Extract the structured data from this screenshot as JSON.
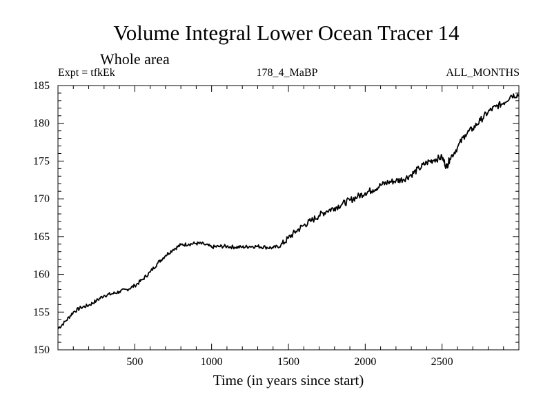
{
  "chart_data": {
    "type": "line",
    "title": "Volume Integral Lower Ocean Tracer 14",
    "subtitle": "Whole area",
    "expt_label": "Expt = tfkEk",
    "center_label": "178_4_MaBP",
    "right_label": "ALL_MONTHS",
    "xlabel": "Time (in years since start)",
    "ylabel": "",
    "xlim": [
      0,
      3000
    ],
    "ylim": [
      150,
      185
    ],
    "x_ticks": [
      500,
      1000,
      1500,
      2000,
      2500
    ],
    "y_ticks": [
      150,
      155,
      160,
      165,
      170,
      175,
      180,
      185
    ],
    "grid": false,
    "series": [
      {
        "x": [
          0,
          50,
          100,
          150,
          200,
          250,
          300,
          350,
          400,
          450,
          500,
          550,
          600,
          650,
          700,
          750,
          800,
          850,
          900,
          950,
          1000,
          1050,
          1100,
          1150,
          1200,
          1250,
          1300,
          1350,
          1400,
          1450,
          1500,
          1550,
          1600,
          1650,
          1700,
          1750,
          1800,
          1850,
          1900,
          1950,
          2000,
          2050,
          2100,
          2150,
          2200,
          2250,
          2300,
          2350,
          2400,
          2450,
          2500,
          2530,
          2550,
          2600,
          2650,
          2700,
          2750,
          2800,
          2850,
          2900,
          2950,
          3000
        ],
        "y": [
          152.8,
          153.8,
          155.0,
          155.6,
          155.9,
          156.5,
          157.2,
          157.4,
          157.7,
          158.0,
          158.5,
          159.3,
          160.3,
          161.5,
          162.5,
          163.3,
          163.9,
          164.0,
          164.1,
          164.0,
          163.6,
          163.7,
          163.7,
          163.6,
          163.6,
          163.7,
          163.7,
          163.6,
          163.5,
          163.8,
          164.8,
          165.7,
          166.5,
          167.1,
          167.8,
          168.4,
          168.8,
          169.3,
          169.8,
          170.3,
          170.8,
          171.2,
          171.8,
          172.2,
          172.4,
          172.6,
          173.2,
          174.0,
          174.8,
          175.2,
          175.5,
          174.2,
          175.3,
          176.8,
          178.5,
          179.3,
          180.4,
          181.5,
          182.2,
          182.7,
          183.7,
          183.8
        ],
        "color": "#000000"
      }
    ]
  }
}
